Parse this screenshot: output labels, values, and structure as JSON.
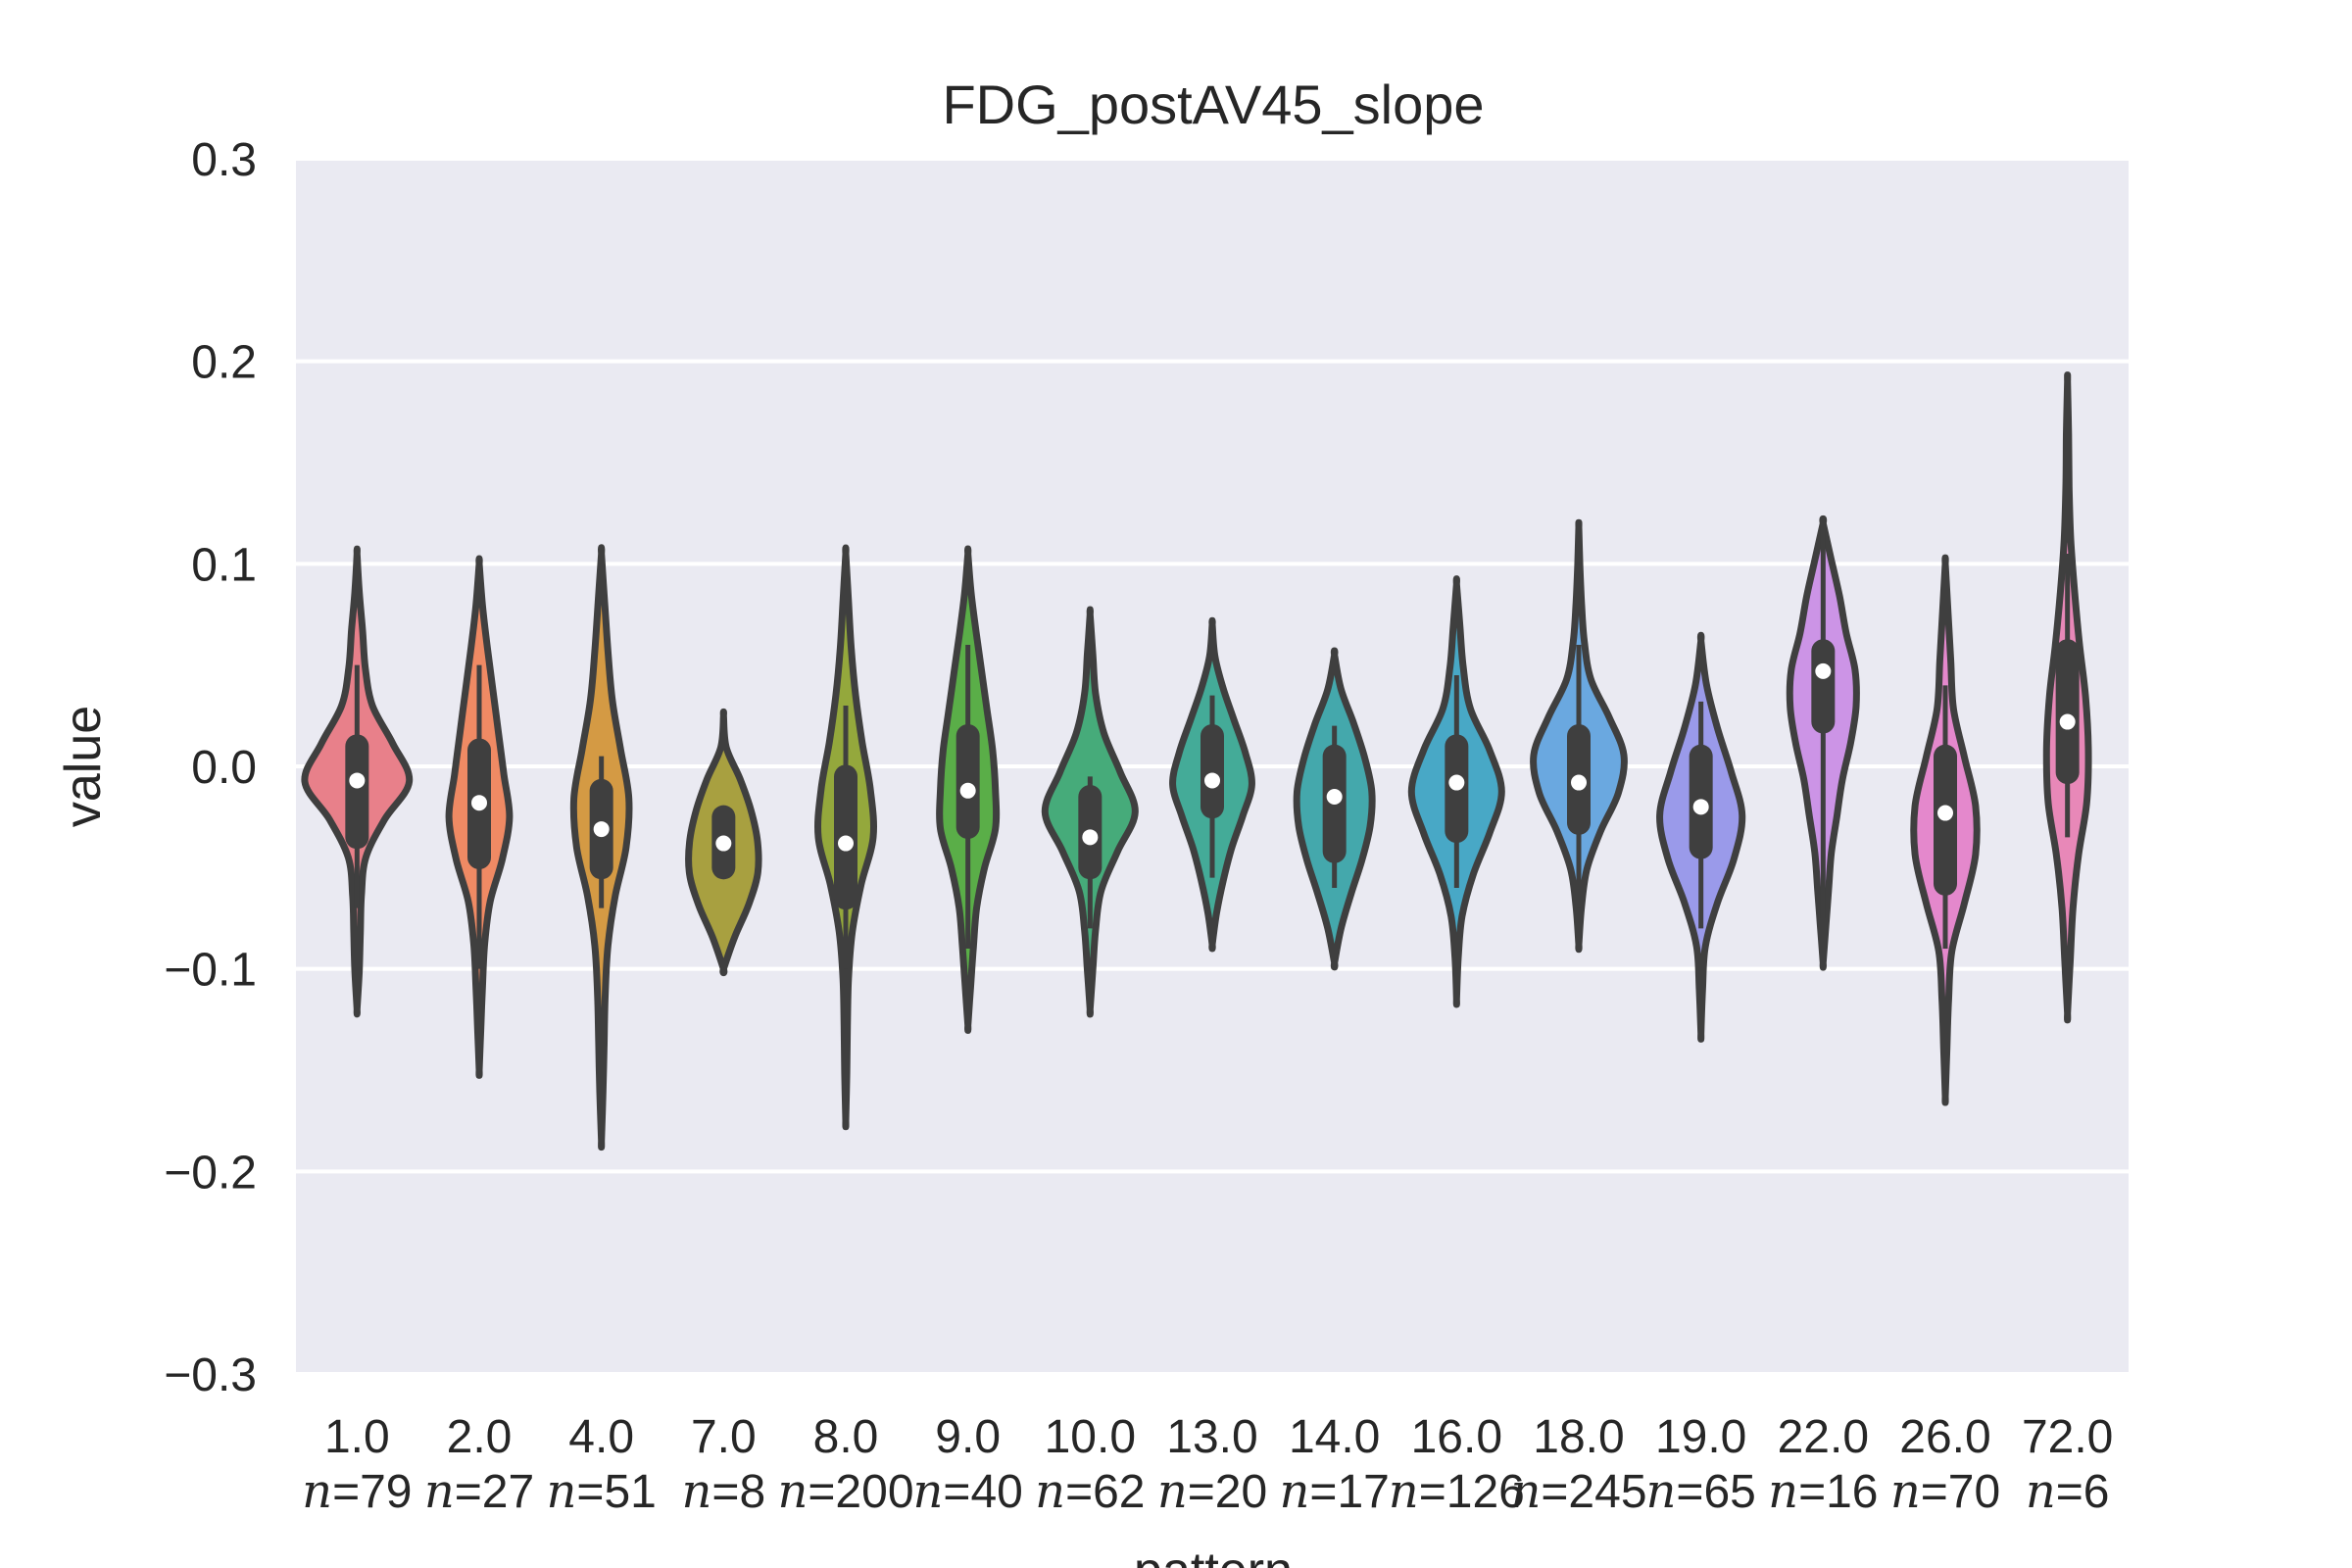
{
  "chart_data": {
    "type": "violin",
    "title": "FDG_postAV45_slope",
    "xlabel": "pattern",
    "ylabel": "value",
    "ylim": [
      -0.3,
      0.3
    ],
    "yticks": [
      -0.3,
      -0.2,
      -0.1,
      0.0,
      0.1,
      0.2,
      0.3
    ],
    "ytick_labels": [
      "−0.3",
      "−0.2",
      "−0.1",
      "0.0",
      "0.1",
      "0.2",
      "0.3"
    ],
    "grid": true,
    "background_color": "#eaeaf2",
    "outline_color": "#3f3f3f",
    "n_prefix": "n",
    "categories": [
      {
        "label": "1.0",
        "n": "=79",
        "color": "#e8808a",
        "min": -0.12,
        "max": 0.105,
        "q1": -0.035,
        "median": -0.007,
        "q3": 0.01,
        "wlo": -0.07,
        "whi": 0.05,
        "widths": [
          0,
          0.04,
          0.06,
          0.08,
          0.16,
          0.5,
          0.95,
          0.65,
          0.28,
          0.15,
          0.1,
          0.04,
          0
        ]
      },
      {
        "label": "2.0",
        "n": "=27",
        "color": "#ef8a64",
        "min": -0.15,
        "max": 0.1,
        "q1": -0.045,
        "median": -0.018,
        "q3": 0.008,
        "wlo": -0.1,
        "whi": 0.05,
        "widths": [
          0,
          0.03,
          0.06,
          0.1,
          0.2,
          0.42,
          0.55,
          0.45,
          0.35,
          0.25,
          0.15,
          0.06,
          0
        ]
      },
      {
        "label": "4.0",
        "n": "=51",
        "color": "#d49a44",
        "min": -0.185,
        "max": 0.105,
        "q1": -0.05,
        "median": -0.031,
        "q3": -0.012,
        "wlo": -0.07,
        "whi": 0.005,
        "widths": [
          0,
          0.03,
          0.05,
          0.07,
          0.12,
          0.25,
          0.45,
          0.5,
          0.35,
          0.2,
          0.12,
          0.06,
          0
        ]
      },
      {
        "label": "7.0",
        "n": "=8",
        "color": "#a8a040",
        "min": -0.1,
        "max": 0.025,
        "q1": -0.05,
        "median": -0.038,
        "q3": -0.025,
        "wlo": -0.055,
        "whi": -0.02,
        "widths": [
          0,
          0.2,
          0.45,
          0.62,
          0.62,
          0.5,
          0.3,
          0.05,
          0
        ]
      },
      {
        "label": "8.0",
        "n": "=200",
        "color": "#94a83c",
        "min": -0.175,
        "max": 0.105,
        "q1": -0.065,
        "median": -0.038,
        "q3": -0.005,
        "wlo": -0.1,
        "whi": 0.03,
        "widths": [
          0,
          0.02,
          0.03,
          0.05,
          0.12,
          0.28,
          0.5,
          0.45,
          0.3,
          0.18,
          0.1,
          0.05,
          0
        ]
      },
      {
        "label": "9.0",
        "n": "=40",
        "color": "#5aae48",
        "min": -0.128,
        "max": 0.105,
        "q1": -0.03,
        "median": -0.012,
        "q3": 0.015,
        "wlo": -0.09,
        "whi": 0.06,
        "widths": [
          0,
          0.05,
          0.1,
          0.16,
          0.3,
          0.5,
          0.5,
          0.45,
          0.35,
          0.25,
          0.15,
          0.06,
          0
        ]
      },
      {
        "label": "10.0",
        "n": "=62",
        "color": "#46ab7a",
        "min": -0.12,
        "max": 0.075,
        "q1": -0.05,
        "median": -0.035,
        "q3": -0.015,
        "wlo": -0.08,
        "whi": -0.005,
        "widths": [
          0,
          0.05,
          0.1,
          0.2,
          0.5,
          0.82,
          0.55,
          0.25,
          0.1,
          0.05,
          0
        ]
      },
      {
        "label": "13.0",
        "n": "=20",
        "color": "#44ab98",
        "min": -0.088,
        "max": 0.07,
        "q1": -0.02,
        "median": -0.007,
        "q3": 0.015,
        "wlo": -0.055,
        "whi": 0.035,
        "widths": [
          0,
          0.08,
          0.2,
          0.35,
          0.55,
          0.72,
          0.6,
          0.4,
          0.2,
          0.05,
          0
        ]
      },
      {
        "label": "14.0",
        "n": "=17",
        "color": "#44a8ac",
        "min": -0.097,
        "max": 0.055,
        "q1": -0.042,
        "median": -0.015,
        "q3": 0.005,
        "wlo": -0.06,
        "whi": 0.02,
        "widths": [
          0,
          0.12,
          0.3,
          0.5,
          0.65,
          0.68,
          0.55,
          0.35,
          0.12,
          0
        ]
      },
      {
        "label": "16.0",
        "n": "=126",
        "color": "#48a8c6",
        "min": -0.115,
        "max": 0.09,
        "q1": -0.032,
        "median": -0.008,
        "q3": 0.01,
        "wlo": -0.06,
        "whi": 0.045,
        "widths": [
          0,
          0.03,
          0.1,
          0.3,
          0.6,
          0.82,
          0.6,
          0.25,
          0.12,
          0.06,
          0
        ]
      },
      {
        "label": "18.0",
        "n": "=245",
        "color": "#6aa8e0",
        "min": -0.088,
        "max": 0.118,
        "q1": -0.028,
        "median": -0.008,
        "q3": 0.015,
        "wlo": -0.07,
        "whi": 0.06,
        "widths": [
          0,
          0.05,
          0.15,
          0.4,
          0.72,
          0.82,
          0.55,
          0.22,
          0.1,
          0.05,
          0.02,
          0
        ]
      },
      {
        "label": "19.0",
        "n": "=65",
        "color": "#9a9aea",
        "min": -0.132,
        "max": 0.062,
        "q1": -0.04,
        "median": -0.02,
        "q3": 0.005,
        "wlo": -0.08,
        "whi": 0.032,
        "widths": [
          0,
          0.03,
          0.08,
          0.3,
          0.6,
          0.75,
          0.55,
          0.3,
          0.1,
          0
        ]
      },
      {
        "label": "22.0",
        "n": "=16",
        "color": "#cc94e6",
        "min": -0.097,
        "max": 0.12,
        "q1": 0.022,
        "median": 0.047,
        "q3": 0.057,
        "wlo": -0.075,
        "whi": 0.12,
        "widths": [
          0,
          0.05,
          0.1,
          0.15,
          0.25,
          0.35,
          0.5,
          0.6,
          0.58,
          0.42,
          0.3,
          0.15,
          0
        ]
      },
      {
        "label": "26.0",
        "n": "=70",
        "color": "#e488cc",
        "min": -0.163,
        "max": 0.1,
        "q1": -0.058,
        "median": -0.023,
        "q3": 0.005,
        "wlo": -0.09,
        "whi": 0.04,
        "widths": [
          0,
          0.03,
          0.06,
          0.12,
          0.35,
          0.55,
          0.55,
          0.35,
          0.15,
          0.1,
          0.05,
          0
        ]
      },
      {
        "label": "72.0",
        "n": "=6",
        "color": "#e888b8",
        "min": -0.122,
        "max": 0.19,
        "q1": -0.003,
        "median": 0.022,
        "q3": 0.057,
        "wlo": -0.035,
        "whi": 0.105,
        "widths": [
          0,
          0.05,
          0.1,
          0.2,
          0.35,
          0.38,
          0.33,
          0.22,
          0.13,
          0.06,
          0.03,
          0.02,
          0
        ]
      }
    ]
  }
}
